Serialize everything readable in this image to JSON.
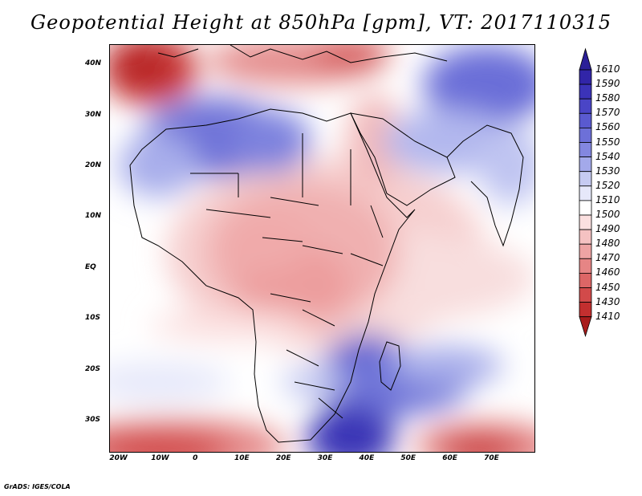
{
  "title": "Geopotential Height at 850hPa [gpm], VT: 2017110315",
  "credit": "GrADS: IGES/COLA",
  "map": {
    "lon_labels": [
      "20W",
      "10W",
      "0",
      "10E",
      "20E",
      "30E",
      "40E",
      "50E",
      "60E",
      "70E"
    ],
    "lat_labels": [
      "40N",
      "30N",
      "20N",
      "10N",
      "EQ",
      "10S",
      "20S",
      "30S"
    ],
    "lon_values": [
      -20,
      -10,
      0,
      10,
      20,
      30,
      40,
      50,
      60,
      70
    ],
    "lat_values": [
      40,
      30,
      20,
      10,
      0,
      -10,
      -20,
      -30
    ],
    "extent": {
      "lon_min": -22,
      "lon_max": 80,
      "lat_min": -36,
      "lat_max": 44
    }
  },
  "colorbar": {
    "levels": [
      "1610",
      "1590",
      "1580",
      "1570",
      "1560",
      "1550",
      "1540",
      "1530",
      "1520",
      "1510",
      "1500",
      "1490",
      "1480",
      "1470",
      "1460",
      "1450",
      "1430",
      "1410"
    ],
    "colors": [
      "#2b1f98",
      "#3125a8",
      "#3b33b8",
      "#4a45c6",
      "#5a5ad0",
      "#6d70d8",
      "#8387e0",
      "#a3a9ea",
      "#c6cbf2",
      "#e6e8fa",
      "#ffffff",
      "#fbe0e0",
      "#f5c2c2",
      "#eea4a4",
      "#e68585",
      "#dd6666",
      "#d24a4a",
      "#c32f2f",
      "#a81c1c"
    ]
  }
}
